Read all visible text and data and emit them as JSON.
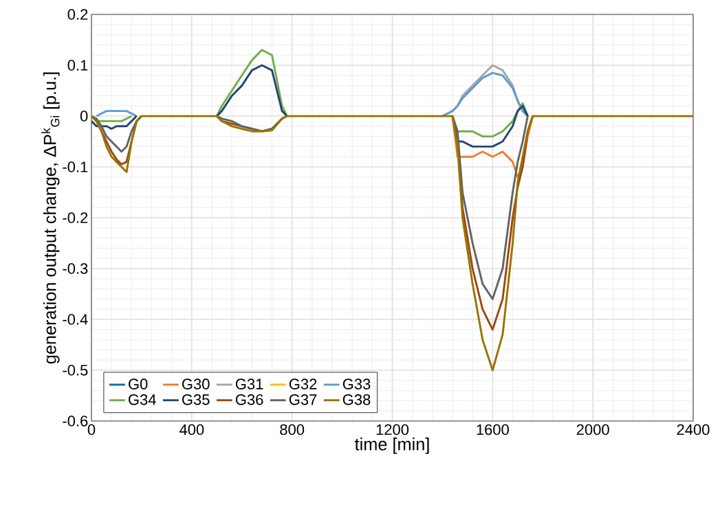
{
  "chart_data": {
    "type": "line",
    "xlabel": "time [min]",
    "ylabel": "generation output change, ΔP$^{k}$$_{Gi}$ [p.u.]",
    "x": [
      0,
      20,
      40,
      60,
      80,
      100,
      120,
      140,
      160,
      180,
      200,
      300,
      400,
      500,
      520,
      560,
      600,
      640,
      680,
      720,
      760,
      780,
      900,
      1200,
      1360,
      1400,
      1440,
      1460,
      1480,
      1520,
      1560,
      1600,
      1640,
      1680,
      1700,
      1720,
      1740,
      1760,
      1800,
      2000,
      2400
    ],
    "series": [
      {
        "name": "G0",
        "color": "#0070c0",
        "values": [
          null,
          null,
          null,
          null,
          null,
          null,
          null,
          null,
          null,
          null,
          null,
          null,
          null,
          null,
          null,
          null,
          null,
          null,
          null,
          null,
          null,
          null,
          null,
          null,
          null,
          null,
          null,
          null,
          null,
          null,
          null,
          null,
          null,
          null,
          null,
          null,
          null,
          null,
          null,
          null,
          null
        ]
      },
      {
        "name": "G30",
        "color": "#ed7d31",
        "values": [
          null,
          null,
          null,
          null,
          null,
          null,
          null,
          null,
          null,
          null,
          null,
          null,
          null,
          null,
          null,
          null,
          null,
          null,
          null,
          null,
          null,
          null,
          null,
          null,
          null,
          null,
          0,
          -0.08,
          -0.08,
          -0.08,
          -0.07,
          -0.08,
          -0.07,
          -0.09,
          -0.12,
          -0.1,
          -0.04,
          0,
          null,
          null,
          null
        ]
      },
      {
        "name": "G31",
        "color": "#a5a5a5",
        "values": [
          null,
          null,
          null,
          null,
          null,
          null,
          null,
          null,
          null,
          null,
          null,
          null,
          null,
          null,
          null,
          null,
          null,
          null,
          null,
          null,
          null,
          null,
          null,
          null,
          null,
          0,
          0.01,
          0.02,
          0.04,
          0.06,
          0.08,
          0.1,
          0.09,
          0.06,
          0.03,
          0.01,
          0,
          null,
          null,
          null,
          null
        ]
      },
      {
        "name": "G32",
        "color": "#ffc000",
        "values": [
          null,
          null,
          null,
          null,
          null,
          null,
          null,
          null,
          null,
          null,
          null,
          null,
          null,
          null,
          null,
          null,
          null,
          null,
          null,
          null,
          null,
          null,
          null,
          null,
          null,
          null,
          null,
          null,
          null,
          null,
          null,
          null,
          null,
          null,
          null,
          null,
          null,
          null,
          null,
          null,
          null
        ]
      },
      {
        "name": "G33",
        "color": "#5b9bd5",
        "values": [
          null,
          0,
          0.005,
          0.01,
          0.01,
          0.01,
          0.01,
          0.01,
          0.005,
          0,
          null,
          null,
          null,
          null,
          null,
          null,
          null,
          null,
          null,
          null,
          null,
          null,
          null,
          null,
          null,
          0,
          0.01,
          0.02,
          0.035,
          0.055,
          0.075,
          0.085,
          0.08,
          0.055,
          0.03,
          0.01,
          0,
          null,
          null,
          null,
          null
        ]
      },
      {
        "name": "G34",
        "color": "#70ad47",
        "values": [
          0,
          -0.01,
          -0.01,
          -0.01,
          -0.01,
          -0.01,
          -0.01,
          -0.005,
          0,
          null,
          null,
          null,
          null,
          0,
          0.02,
          0.05,
          0.08,
          0.11,
          0.13,
          0.12,
          0.02,
          0,
          null,
          null,
          null,
          null,
          0,
          -0.03,
          -0.03,
          -0.03,
          -0.04,
          -0.04,
          -0.03,
          -0.01,
          0.01,
          0.025,
          0,
          null,
          null,
          null,
          null
        ]
      },
      {
        "name": "G35",
        "color": "#264478",
        "values": [
          -0.01,
          -0.02,
          -0.02,
          -0.02,
          -0.025,
          -0.02,
          -0.02,
          -0.02,
          -0.01,
          0,
          null,
          null,
          null,
          0,
          0.01,
          0.04,
          0.06,
          0.09,
          0.1,
          0.09,
          0.01,
          0,
          null,
          null,
          null,
          null,
          0,
          -0.05,
          -0.05,
          -0.06,
          -0.06,
          -0.06,
          -0.05,
          -0.02,
          0.01,
          0.02,
          0,
          null,
          null,
          null,
          null
        ]
      },
      {
        "name": "G36",
        "color": "#9e480e",
        "values": [
          0,
          -0.01,
          -0.03,
          -0.05,
          -0.07,
          -0.085,
          -0.095,
          -0.09,
          -0.05,
          -0.01,
          0,
          null,
          null,
          0,
          -0.01,
          -0.015,
          -0.02,
          -0.025,
          -0.03,
          -0.025,
          -0.005,
          0,
          null,
          null,
          null,
          null,
          0,
          -0.05,
          -0.18,
          -0.3,
          -0.38,
          -0.42,
          -0.36,
          -0.2,
          -0.14,
          -0.1,
          -0.03,
          0,
          null,
          null,
          null
        ]
      },
      {
        "name": "G37",
        "color": "#636363",
        "values": [
          0,
          -0.005,
          -0.02,
          -0.04,
          -0.05,
          -0.06,
          -0.07,
          -0.06,
          -0.03,
          -0.01,
          0,
          null,
          null,
          0,
          -0.005,
          -0.01,
          -0.02,
          -0.025,
          -0.03,
          -0.025,
          -0.005,
          0,
          null,
          null,
          null,
          null,
          0,
          -0.03,
          -0.15,
          -0.25,
          -0.33,
          -0.36,
          -0.3,
          -0.15,
          -0.09,
          -0.05,
          0,
          null,
          null,
          null,
          null
        ]
      },
      {
        "name": "G38",
        "color": "#997300",
        "values": [
          0,
          -0.01,
          -0.03,
          -0.06,
          -0.08,
          -0.09,
          -0.1,
          -0.11,
          -0.05,
          -0.01,
          0,
          0,
          0,
          0,
          -0.01,
          -0.02,
          -0.025,
          -0.03,
          -0.03,
          -0.028,
          -0.005,
          0,
          0,
          0,
          0,
          0,
          0,
          -0.06,
          -0.2,
          -0.33,
          -0.44,
          -0.5,
          -0.43,
          -0.25,
          -0.13,
          -0.08,
          -0.03,
          0,
          0,
          0,
          0
        ]
      }
    ],
    "xlim": [
      0,
      2400
    ],
    "ylim": [
      -0.6,
      0.2
    ],
    "xticks": [
      0,
      400,
      800,
      1200,
      1600,
      2000,
      2400
    ],
    "yticks": [
      -0.6,
      -0.5,
      -0.4,
      -0.3,
      -0.2,
      -0.1,
      0,
      0.1,
      0.2
    ],
    "grid": true,
    "legend": "bottom left",
    "marker": "none",
    "line_style": "solid"
  }
}
